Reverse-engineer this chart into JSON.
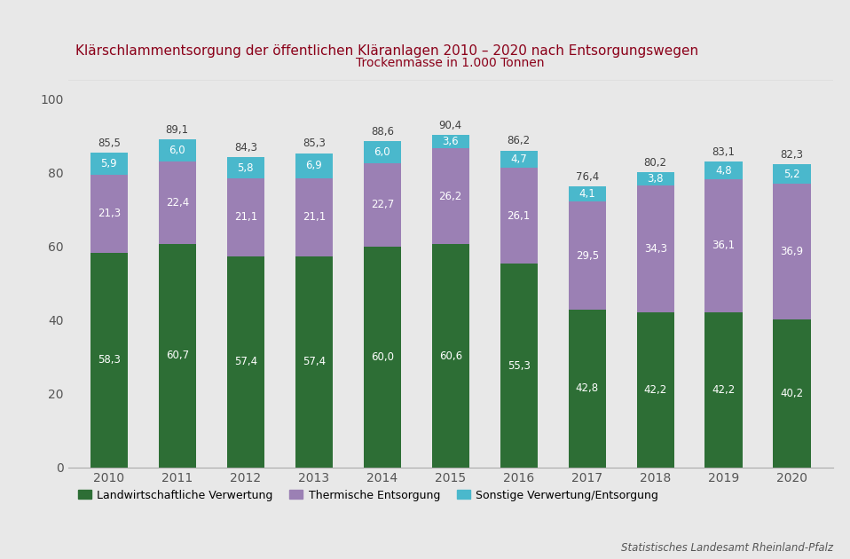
{
  "years": [
    "2010",
    "2011",
    "2012",
    "2013",
    "2014",
    "2015",
    "2016",
    "2017",
    "2018",
    "2019",
    "2020"
  ],
  "landwirtschaft": [
    58.3,
    60.7,
    57.4,
    57.4,
    60.0,
    60.6,
    55.3,
    42.8,
    42.2,
    42.2,
    40.2
  ],
  "thermisch": [
    21.3,
    22.4,
    21.1,
    21.1,
    22.7,
    26.2,
    26.1,
    29.5,
    34.3,
    36.1,
    36.9
  ],
  "sonstige": [
    5.9,
    6.0,
    5.8,
    6.9,
    6.0,
    3.6,
    4.7,
    4.1,
    3.8,
    4.8,
    5.2
  ],
  "totals": [
    85.5,
    89.1,
    84.3,
    85.3,
    88.6,
    90.4,
    86.2,
    76.4,
    80.2,
    83.1,
    82.3
  ],
  "color_landwirtschaft": "#2d6e35",
  "color_thermisch": "#9b80b4",
  "color_sonstige": "#4ab8cc",
  "title": "Klärschlammentsorgung der öffentlichen Kläranlagen 2010 – 2020 nach Entsorgungswegen",
  "subtitle": "Trockenmasse in 1.000 Tonnen",
  "source": "Statistisches Landesamt Rheinland-Pfalz",
  "legend1": "Landwirtschaftliche Verwertung",
  "legend2": "Thermische Entsorgung",
  "legend3": "Sonstige Verwertung/Entsorgung",
  "ylim": [
    0,
    105
  ],
  "yticks": [
    0,
    20,
    40,
    60,
    80,
    100
  ],
  "background_color": "#e8e8e8",
  "plot_bg_color": "#e8e8e8",
  "header_bar_color": "#8b0019",
  "title_color": "#8b0019",
  "subtitle_color": "#8b0019",
  "source_color": "#555555",
  "label_color_light": "#ffffff",
  "label_color_dark": "#404040",
  "tick_color": "#555555",
  "separator_color": "#bbbbbb"
}
